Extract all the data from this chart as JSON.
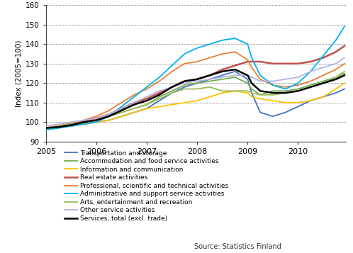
{
  "title": "",
  "ylabel": "Index (2005=100)",
  "ylim": [
    90,
    160
  ],
  "yticks": [
    90,
    100,
    110,
    120,
    130,
    140,
    150,
    160
  ],
  "xlim_start": 2005.0,
  "xlim_end": 2010.95,
  "xtick_years": [
    2005,
    2006,
    2007,
    2008,
    2009,
    2010
  ],
  "source": "Source: Statistics Finland",
  "background_color": "#ffffff",
  "grid_color": "#999999",
  "series": {
    "Transportation and storage": {
      "color": "#4472c4",
      "lw": 1.3,
      "data": [
        [
          2005.0,
          97
        ],
        [
          2005.25,
          97.5
        ],
        [
          2005.5,
          98
        ],
        [
          2005.75,
          99
        ],
        [
          2006.0,
          100
        ],
        [
          2006.25,
          101
        ],
        [
          2006.5,
          103
        ],
        [
          2006.75,
          105
        ],
        [
          2007.0,
          107
        ],
        [
          2007.25,
          111
        ],
        [
          2007.5,
          115
        ],
        [
          2007.75,
          118
        ],
        [
          2008.0,
          120
        ],
        [
          2008.25,
          122
        ],
        [
          2008.5,
          124
        ],
        [
          2008.75,
          126
        ],
        [
          2009.0,
          122
        ],
        [
          2009.08,
          115
        ],
        [
          2009.25,
          105
        ],
        [
          2009.5,
          103
        ],
        [
          2009.75,
          105
        ],
        [
          2010.0,
          108
        ],
        [
          2010.25,
          111
        ],
        [
          2010.5,
          113
        ],
        [
          2010.75,
          115
        ],
        [
          2010.92,
          117
        ]
      ]
    },
    "Accommodation and food service activities": {
      "color": "#70ad47",
      "lw": 1.3,
      "data": [
        [
          2005.0,
          97
        ],
        [
          2005.25,
          98
        ],
        [
          2005.5,
          99
        ],
        [
          2005.75,
          100
        ],
        [
          2006.0,
          101
        ],
        [
          2006.25,
          103
        ],
        [
          2006.5,
          105
        ],
        [
          2006.75,
          107
        ],
        [
          2007.0,
          109
        ],
        [
          2007.25,
          113
        ],
        [
          2007.5,
          116
        ],
        [
          2007.75,
          119
        ],
        [
          2008.0,
          120
        ],
        [
          2008.25,
          121
        ],
        [
          2008.5,
          122
        ],
        [
          2008.75,
          123
        ],
        [
          2009.0,
          120
        ],
        [
          2009.08,
          117
        ],
        [
          2009.25,
          114
        ],
        [
          2009.5,
          116
        ],
        [
          2009.75,
          116
        ],
        [
          2010.0,
          117
        ],
        [
          2010.25,
          119
        ],
        [
          2010.5,
          121
        ],
        [
          2010.75,
          123
        ],
        [
          2010.92,
          125
        ]
      ]
    },
    "Information and communication": {
      "color": "#ffc000",
      "lw": 1.3,
      "data": [
        [
          2005.0,
          97
        ],
        [
          2005.25,
          97
        ],
        [
          2005.5,
          98
        ],
        [
          2005.75,
          99
        ],
        [
          2006.0,
          100
        ],
        [
          2006.25,
          101
        ],
        [
          2006.5,
          103
        ],
        [
          2006.75,
          105
        ],
        [
          2007.0,
          107
        ],
        [
          2007.25,
          108
        ],
        [
          2007.5,
          109
        ],
        [
          2007.75,
          110
        ],
        [
          2008.0,
          111
        ],
        [
          2008.25,
          113
        ],
        [
          2008.5,
          115
        ],
        [
          2008.75,
          116
        ],
        [
          2009.0,
          115
        ],
        [
          2009.08,
          113
        ],
        [
          2009.25,
          112
        ],
        [
          2009.5,
          111
        ],
        [
          2009.75,
          110
        ],
        [
          2010.0,
          110
        ],
        [
          2010.25,
          111
        ],
        [
          2010.5,
          113
        ],
        [
          2010.75,
          117
        ],
        [
          2010.92,
          120
        ]
      ]
    },
    "Real estate activities": {
      "color": "#c0504d",
      "lw": 1.8,
      "data": [
        [
          2005.0,
          97
        ],
        [
          2005.25,
          98
        ],
        [
          2005.5,
          99
        ],
        [
          2005.75,
          100.5
        ],
        [
          2006.0,
          102
        ],
        [
          2006.25,
          104
        ],
        [
          2006.5,
          107
        ],
        [
          2006.75,
          110
        ],
        [
          2007.0,
          112
        ],
        [
          2007.25,
          115
        ],
        [
          2007.5,
          118
        ],
        [
          2007.75,
          121
        ],
        [
          2008.0,
          122
        ],
        [
          2008.25,
          124
        ],
        [
          2008.5,
          127
        ],
        [
          2008.75,
          129
        ],
        [
          2009.0,
          131
        ],
        [
          2009.08,
          131
        ],
        [
          2009.25,
          131
        ],
        [
          2009.5,
          130
        ],
        [
          2009.75,
          130
        ],
        [
          2010.0,
          130
        ],
        [
          2010.25,
          131
        ],
        [
          2010.5,
          133
        ],
        [
          2010.75,
          136
        ],
        [
          2010.92,
          139
        ]
      ]
    },
    "Professional, scientific and technical activities": {
      "color": "#ed7d31",
      "lw": 1.3,
      "data": [
        [
          2005.0,
          97
        ],
        [
          2005.25,
          98
        ],
        [
          2005.5,
          99.5
        ],
        [
          2005.75,
          101
        ],
        [
          2006.0,
          103
        ],
        [
          2006.25,
          106
        ],
        [
          2006.5,
          110
        ],
        [
          2006.75,
          114
        ],
        [
          2007.0,
          117
        ],
        [
          2007.25,
          121
        ],
        [
          2007.5,
          126
        ],
        [
          2007.75,
          130
        ],
        [
          2008.0,
          131
        ],
        [
          2008.25,
          133
        ],
        [
          2008.5,
          135
        ],
        [
          2008.75,
          136
        ],
        [
          2009.0,
          132
        ],
        [
          2009.08,
          128
        ],
        [
          2009.25,
          122
        ],
        [
          2009.5,
          119
        ],
        [
          2009.75,
          118
        ],
        [
          2010.0,
          119
        ],
        [
          2010.25,
          121
        ],
        [
          2010.5,
          124
        ],
        [
          2010.75,
          127
        ],
        [
          2010.92,
          130
        ]
      ]
    },
    "Administrative and support service activities": {
      "color": "#00b0f0",
      "lw": 1.3,
      "data": [
        [
          2005.0,
          96
        ],
        [
          2005.25,
          97
        ],
        [
          2005.5,
          98
        ],
        [
          2005.75,
          99
        ],
        [
          2006.0,
          100
        ],
        [
          2006.25,
          103
        ],
        [
          2006.5,
          108
        ],
        [
          2006.75,
          113
        ],
        [
          2007.0,
          118
        ],
        [
          2007.25,
          123
        ],
        [
          2007.5,
          129
        ],
        [
          2007.75,
          135
        ],
        [
          2008.0,
          138
        ],
        [
          2008.25,
          140
        ],
        [
          2008.5,
          142
        ],
        [
          2008.75,
          143
        ],
        [
          2009.0,
          140
        ],
        [
          2009.08,
          133
        ],
        [
          2009.25,
          124
        ],
        [
          2009.5,
          119
        ],
        [
          2009.75,
          117
        ],
        [
          2010.0,
          120
        ],
        [
          2010.25,
          126
        ],
        [
          2010.5,
          134
        ],
        [
          2010.75,
          142
        ],
        [
          2010.92,
          149
        ]
      ]
    },
    "Arts, entertainment and recreation": {
      "color": "#9bbb59",
      "lw": 1.3,
      "data": [
        [
          2005.0,
          97
        ],
        [
          2005.25,
          98
        ],
        [
          2005.5,
          99
        ],
        [
          2005.75,
          100
        ],
        [
          2006.0,
          101
        ],
        [
          2006.25,
          103
        ],
        [
          2006.5,
          105
        ],
        [
          2006.75,
          107
        ],
        [
          2007.0,
          109
        ],
        [
          2007.25,
          112
        ],
        [
          2007.5,
          115
        ],
        [
          2007.75,
          117
        ],
        [
          2008.0,
          117
        ],
        [
          2008.25,
          118
        ],
        [
          2008.5,
          116
        ],
        [
          2008.75,
          116
        ],
        [
          2009.0,
          116
        ],
        [
          2009.08,
          115
        ],
        [
          2009.25,
          114
        ],
        [
          2009.5,
          114
        ],
        [
          2009.75,
          115
        ],
        [
          2010.0,
          116
        ],
        [
          2010.25,
          118
        ],
        [
          2010.5,
          120
        ],
        [
          2010.75,
          123
        ],
        [
          2010.92,
          126
        ]
      ]
    },
    "Other service activities": {
      "color": "#b3b3e6",
      "lw": 1.3,
      "data": [
        [
          2005.0,
          98
        ],
        [
          2005.25,
          99
        ],
        [
          2005.5,
          100
        ],
        [
          2005.75,
          101
        ],
        [
          2006.0,
          102
        ],
        [
          2006.25,
          104
        ],
        [
          2006.5,
          107
        ],
        [
          2006.75,
          110
        ],
        [
          2007.0,
          113
        ],
        [
          2007.25,
          116
        ],
        [
          2007.5,
          118
        ],
        [
          2007.75,
          120
        ],
        [
          2008.0,
          121
        ],
        [
          2008.25,
          122
        ],
        [
          2008.5,
          123
        ],
        [
          2008.75,
          124
        ],
        [
          2009.0,
          124
        ],
        [
          2009.08,
          123
        ],
        [
          2009.25,
          121
        ],
        [
          2009.5,
          121
        ],
        [
          2009.75,
          122
        ],
        [
          2010.0,
          123
        ],
        [
          2010.25,
          126
        ],
        [
          2010.5,
          128
        ],
        [
          2010.75,
          130
        ],
        [
          2010.92,
          133
        ]
      ]
    },
    "Services, total (excl. trade)": {
      "color": "#000000",
      "lw": 1.8,
      "data": [
        [
          2005.0,
          97
        ],
        [
          2005.25,
          97.5
        ],
        [
          2005.5,
          98.5
        ],
        [
          2005.75,
          100
        ],
        [
          2006.0,
          101
        ],
        [
          2006.25,
          103
        ],
        [
          2006.5,
          106
        ],
        [
          2006.75,
          109
        ],
        [
          2007.0,
          111
        ],
        [
          2007.25,
          114
        ],
        [
          2007.5,
          118
        ],
        [
          2007.75,
          121
        ],
        [
          2008.0,
          122
        ],
        [
          2008.25,
          124
        ],
        [
          2008.5,
          126
        ],
        [
          2008.75,
          127
        ],
        [
          2009.0,
          124
        ],
        [
          2009.08,
          120
        ],
        [
          2009.25,
          116
        ],
        [
          2009.5,
          115
        ],
        [
          2009.75,
          115
        ],
        [
          2010.0,
          116
        ],
        [
          2010.25,
          118
        ],
        [
          2010.5,
          120
        ],
        [
          2010.75,
          122
        ],
        [
          2010.92,
          124
        ]
      ]
    }
  },
  "legend_labels": [
    "Transportation and storage",
    "Accommodation and food service activities",
    "Information and communication",
    "Real estate activities",
    "Professional, scientific and technical activities",
    "Administrative and support service activities",
    "Arts, entertainment and recreation",
    "Other service activities",
    "Services, total (excl. trade)"
  ],
  "legend_colors": [
    "#4472c4",
    "#70ad47",
    "#ffc000",
    "#c0504d",
    "#ed7d31",
    "#00b0f0",
    "#9bbb59",
    "#b3b3e6",
    "#000000"
  ],
  "legend_lws": [
    1.3,
    1.3,
    1.3,
    1.8,
    1.3,
    1.3,
    1.3,
    1.3,
    1.8
  ]
}
